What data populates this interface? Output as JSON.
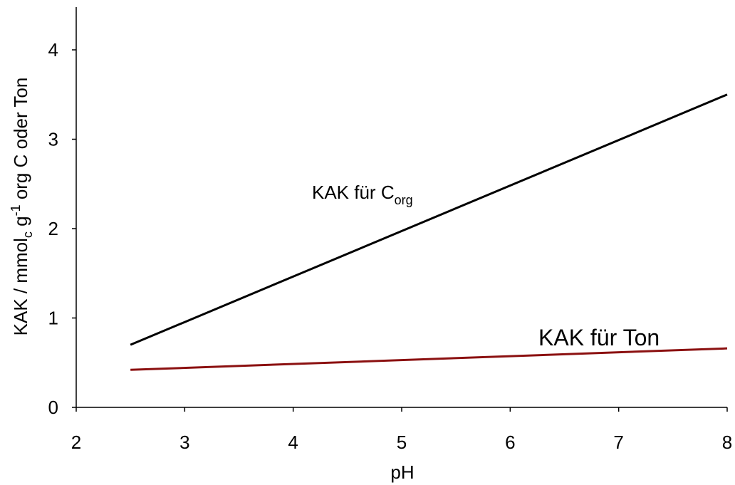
{
  "chart_data": {
    "type": "line",
    "title": "",
    "xlabel": "pH",
    "ylabel": {
      "prefix": "KAK / mmol",
      "sub": "c",
      "middle": " g",
      "sup": "-1",
      "suffix": " org C oder Ton"
    },
    "xlim": [
      2,
      8
    ],
    "ylim": [
      0,
      4.5
    ],
    "x_ticks": [
      2,
      3,
      4,
      5,
      6,
      7,
      8
    ],
    "y_ticks": [
      0,
      1,
      2,
      3,
      4
    ],
    "grid": false,
    "series": [
      {
        "key": "corg",
        "label": {
          "text": "KAK für C",
          "sub": "org"
        },
        "color": "#000000",
        "x": [
          2.5,
          8
        ],
        "y": [
          0.7,
          3.5
        ]
      },
      {
        "key": "ton",
        "label": {
          "text": "KAK für Ton",
          "sub": ""
        },
        "color": "#8b1010",
        "x": [
          2.5,
          8
        ],
        "y": [
          0.42,
          0.66
        ]
      }
    ]
  }
}
